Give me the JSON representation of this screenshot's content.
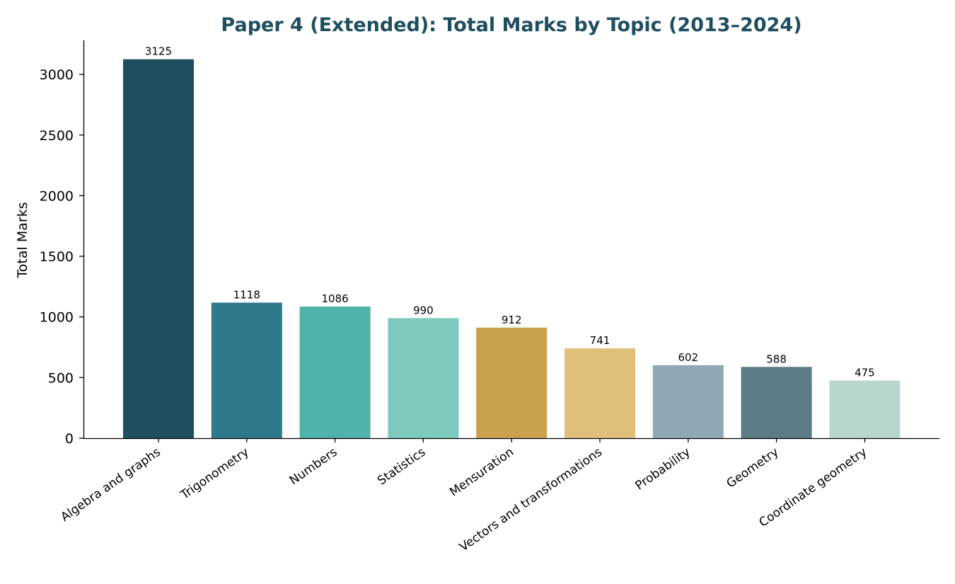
{
  "chart_data": {
    "type": "bar",
    "title": "Paper 4 (Extended): Total Marks by Topic (2013–2024)",
    "xlabel": "",
    "ylabel": "Total Marks",
    "ylim": [
      0,
      3281
    ],
    "yticks": [
      0,
      500,
      1000,
      1500,
      2000,
      2500,
      3000
    ],
    "grid": false,
    "categories": [
      "Algebra and graphs",
      "Trigonometry",
      "Numbers",
      "Statistics",
      "Mensuration",
      "Vectors and transformations",
      "Probability",
      "Geometry",
      "Coordinate geometry"
    ],
    "values": [
      3125,
      1118,
      1086,
      990,
      912,
      741,
      602,
      588,
      475
    ],
    "colors": [
      "#1f4e5f",
      "#2e7a8c",
      "#50b3a9",
      "#7dc9bd",
      "#c9a24d",
      "#e0bf7a",
      "#91a8b4",
      "#5b7c86",
      "#b8d5cf"
    ]
  }
}
